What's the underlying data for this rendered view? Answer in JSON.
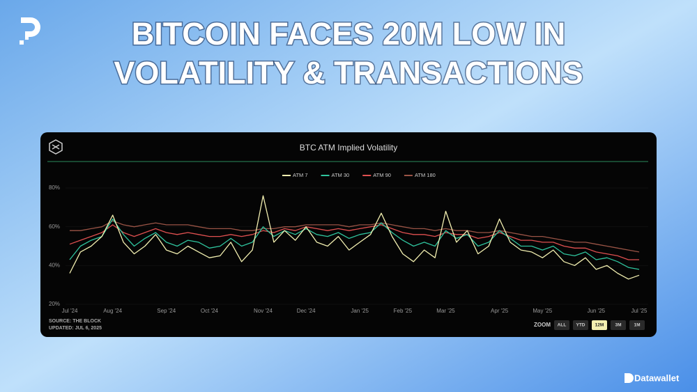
{
  "headline": [
    "BITCOIN FACES 20M LOW IN",
    "VOLATILITY & TRANSACTIONS"
  ],
  "brand": "Datawallet",
  "source": "SOURCE: THE BLOCK",
  "updated": "UPDATED: JUL 6, 2025",
  "zoom": {
    "label": "ZOOM",
    "buttons": [
      "ALL",
      "YTD",
      "12M",
      "3M",
      "1M"
    ],
    "active": "12M"
  },
  "chart_data": {
    "type": "line",
    "title": "BTC ATM Implied Volatility",
    "categories": [
      "Jul '24",
      null,
      null,
      null,
      "Aug '24",
      null,
      null,
      null,
      null,
      "Sep '24",
      null,
      null,
      null,
      "Oct '24",
      null,
      null,
      null,
      null,
      "Nov '24",
      null,
      null,
      null,
      "Dec '24",
      null,
      null,
      null,
      null,
      "Jan '25",
      null,
      null,
      null,
      "Feb '25",
      null,
      null,
      null,
      "Mar '25",
      null,
      null,
      null,
      null,
      "Apr '25",
      null,
      null,
      null,
      "May '25",
      null,
      null,
      null,
      null,
      "Jun '25",
      null,
      null,
      null,
      "Jul '25"
    ],
    "series": [
      {
        "name": "ATM 7",
        "color": "#f2efb0",
        "values": [
          36,
          47,
          50,
          55,
          66,
          52,
          46,
          50,
          56,
          48,
          46,
          50,
          47,
          44,
          45,
          52,
          42,
          48,
          76,
          52,
          58,
          53,
          60,
          52,
          50,
          55,
          48,
          52,
          56,
          67,
          55,
          46,
          42,
          48,
          44,
          68,
          52,
          58,
          46,
          50,
          64,
          52,
          48,
          47,
          44,
          48,
          42,
          40,
          44,
          38,
          40,
          36,
          33,
          35
        ]
      },
      {
        "name": "ATM 30",
        "color": "#2fc49e",
        "values": [
          43,
          50,
          53,
          55,
          64,
          56,
          50,
          54,
          57,
          52,
          50,
          53,
          52,
          49,
          50,
          54,
          50,
          52,
          60,
          55,
          58,
          56,
          59,
          56,
          55,
          57,
          54,
          56,
          57,
          62,
          57,
          53,
          50,
          52,
          50,
          58,
          54,
          56,
          50,
          52,
          58,
          54,
          50,
          50,
          48,
          50,
          46,
          45,
          47,
          43,
          44,
          42,
          39,
          38
        ]
      },
      {
        "name": "ATM 90",
        "color": "#e05050",
        "values": [
          51,
          53,
          55,
          57,
          61,
          57,
          55,
          57,
          59,
          57,
          56,
          57,
          56,
          55,
          55,
          56,
          55,
          56,
          58,
          57,
          59,
          58,
          60,
          59,
          58,
          59,
          58,
          59,
          60,
          61,
          59,
          57,
          56,
          56,
          55,
          57,
          56,
          56,
          54,
          55,
          57,
          55,
          53,
          53,
          52,
          52,
          50,
          49,
          49,
          47,
          46,
          45,
          43,
          43
        ]
      },
      {
        "name": "ATM 180",
        "color": "#9a5446",
        "values": [
          58,
          58,
          59,
          60,
          63,
          61,
          60,
          61,
          62,
          61,
          61,
          61,
          60,
          59,
          59,
          59,
          58,
          58,
          59,
          59,
          60,
          60,
          61,
          61,
          61,
          61,
          60,
          61,
          61,
          62,
          61,
          60,
          59,
          59,
          58,
          59,
          58,
          58,
          57,
          57,
          58,
          57,
          56,
          55,
          55,
          54,
          53,
          52,
          52,
          51,
          50,
          49,
          48,
          47
        ]
      }
    ],
    "ylim": [
      20,
      80
    ],
    "yticks": [
      {
        "value": 20,
        "label": "20%"
      },
      {
        "value": 40,
        "label": "40%"
      },
      {
        "value": 60,
        "label": "60%"
      },
      {
        "value": 80,
        "label": "80%"
      }
    ],
    "legend": "top"
  }
}
